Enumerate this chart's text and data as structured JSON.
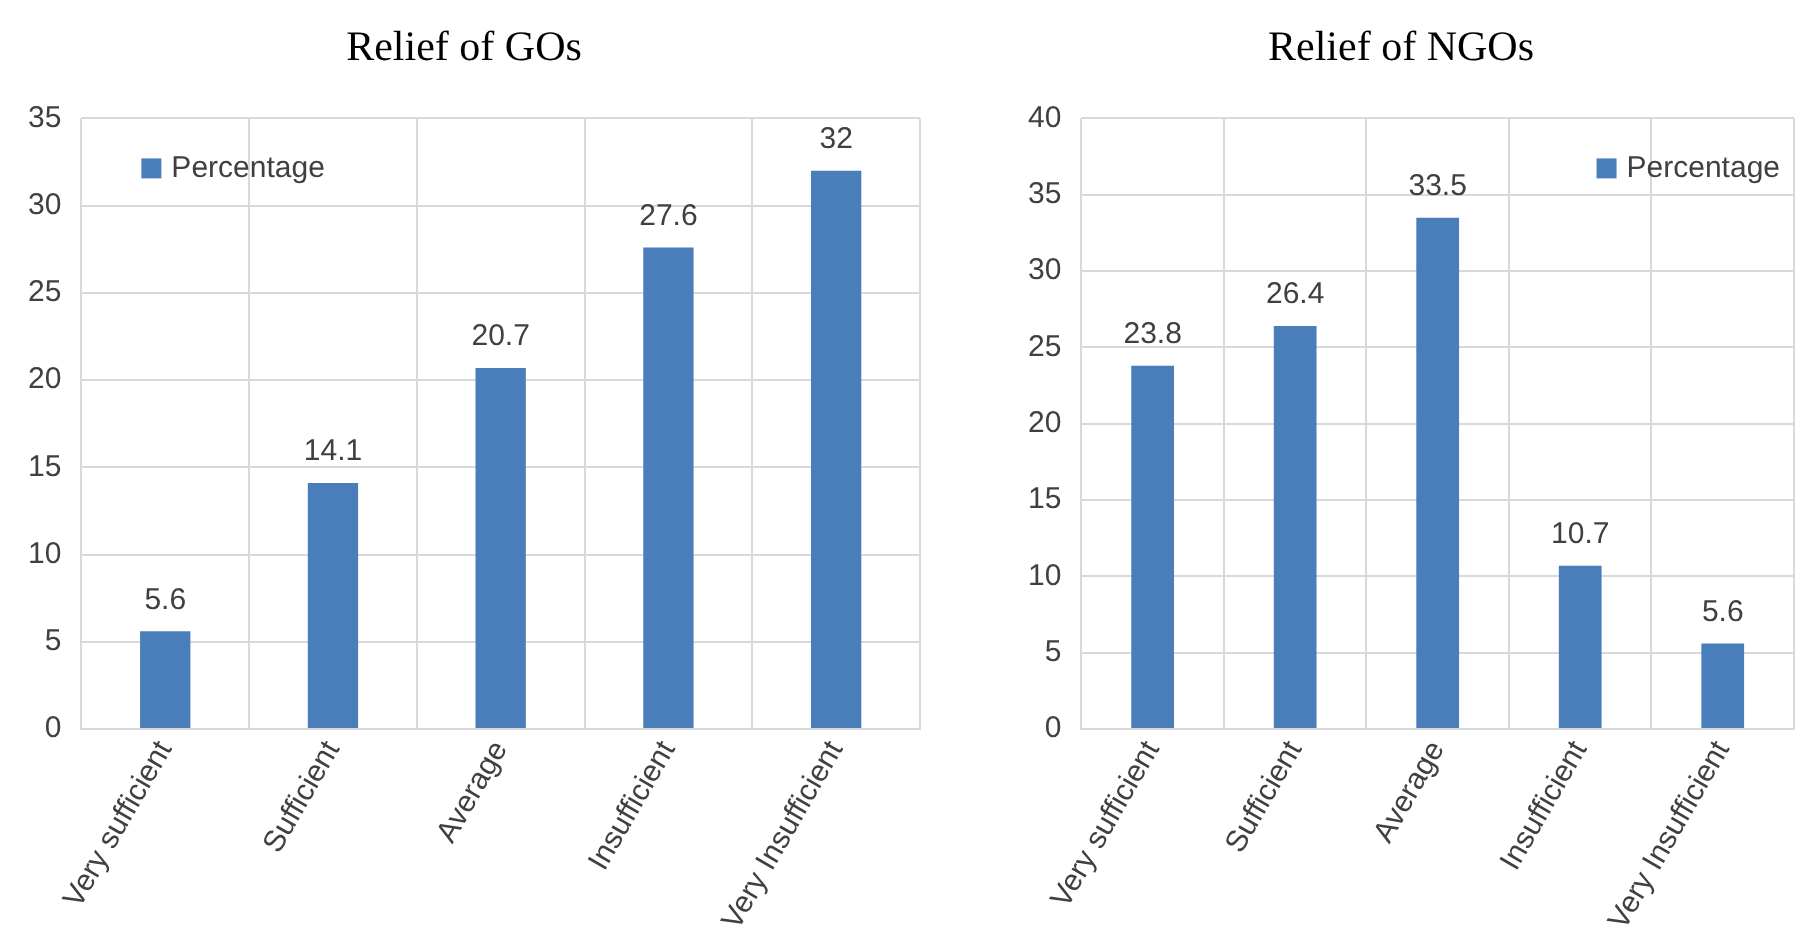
{
  "chart_data": [
    {
      "type": "bar",
      "title": "Relief of GOs",
      "categories": [
        "Very sufficient",
        "Sufficient",
        "Average",
        "Insufficient",
        "Very Insufficient"
      ],
      "series": [
        {
          "name": "Percentage",
          "color": "#4a7ebb",
          "values": [
            5.6,
            14.1,
            20.7,
            27.6,
            32
          ]
        }
      ],
      "ylim": [
        0,
        35
      ],
      "yticks": [
        0,
        5,
        10,
        15,
        20,
        25,
        30,
        35
      ],
      "grid": true,
      "legend": "top left",
      "data_labels": true
    },
    {
      "type": "bar",
      "title": "Relief of NGOs",
      "categories": [
        "Very sufficient",
        "Sufficient",
        "Average",
        "Insufficient",
        "Very Insufficient"
      ],
      "series": [
        {
          "name": "Percentage",
          "color": "#4a7ebb",
          "values": [
            23.8,
            26.4,
            33.5,
            10.7,
            5.6
          ]
        }
      ],
      "ylim": [
        0,
        40
      ],
      "yticks": [
        0,
        5,
        10,
        15,
        20,
        25,
        30,
        35,
        40
      ],
      "grid": true,
      "legend": "top right",
      "data_labels": true
    }
  ]
}
